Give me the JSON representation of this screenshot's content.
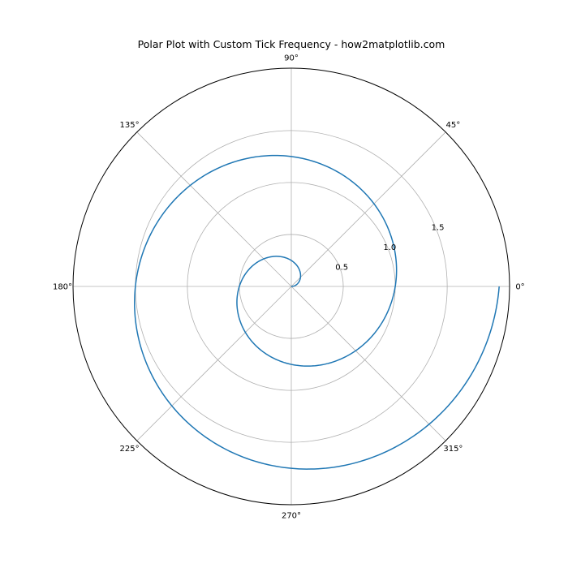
{
  "chart_data": {
    "type": "line",
    "projection": "polar",
    "title": "Polar Plot with Custom Tick Frequency - how2matplotlib.com",
    "theta_ticks": [
      {
        "deg": 0,
        "label": "0°"
      },
      {
        "deg": 45,
        "label": "45°"
      },
      {
        "deg": 90,
        "label": "90°"
      },
      {
        "deg": 135,
        "label": "135°"
      },
      {
        "deg": 180,
        "label": "180°"
      },
      {
        "deg": 225,
        "label": "225°"
      },
      {
        "deg": 270,
        "label": "270°"
      },
      {
        "deg": 315,
        "label": "315°"
      }
    ],
    "r_ticks": [
      {
        "value": 0.5,
        "label": "0.5"
      },
      {
        "value": 1.0,
        "label": "1.0"
      },
      {
        "value": 1.5,
        "label": "1.5"
      }
    ],
    "rlim": [
      0,
      2.1
    ],
    "grid": true,
    "series": [
      {
        "color": "#1f77b4",
        "equation": "r = theta / (2*pi)",
        "theta_range_rad": [
          0,
          12.566
        ],
        "sample_points": [
          {
            "theta_deg": 0,
            "r": 0.0
          },
          {
            "theta_deg": 90,
            "r": 0.25
          },
          {
            "theta_deg": 180,
            "r": 0.5
          },
          {
            "theta_deg": 270,
            "r": 0.75
          },
          {
            "theta_deg": 360,
            "r": 1.0
          },
          {
            "theta_deg": 450,
            "r": 1.25
          },
          {
            "theta_deg": 540,
            "r": 1.5
          },
          {
            "theta_deg": 630,
            "r": 1.75
          },
          {
            "theta_deg": 720,
            "r": 2.0
          }
        ]
      }
    ]
  }
}
